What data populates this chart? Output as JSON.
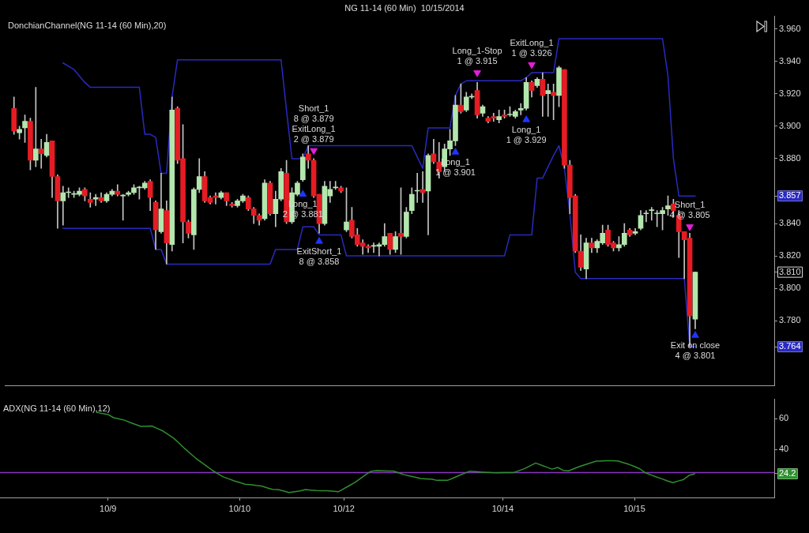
{
  "chart_data": [
    {
      "type": "candlestick",
      "title": "NG 11-14 (60 Min)  10/15/2014",
      "subtitle": "DonchianChannel(NG 11-14 (60 Min),20)",
      "categories": [
        null,
        null,
        null,
        null,
        null,
        null,
        null,
        null,
        null,
        null,
        null,
        null,
        null,
        null,
        null,
        null,
        null,
        null,
        null,
        null,
        null,
        null,
        null,
        null,
        null,
        null,
        null,
        null,
        null,
        null,
        null,
        null,
        null,
        null,
        null,
        null,
        null,
        null,
        null,
        null,
        null,
        null,
        null,
        null,
        null,
        null,
        null,
        null,
        null,
        null,
        null,
        null,
        null,
        null,
        null,
        null,
        null,
        null,
        null,
        null,
        null,
        null,
        null,
        null,
        null,
        null,
        null,
        null,
        null,
        null,
        null,
        null,
        null,
        null,
        null,
        null,
        null,
        null,
        null,
        null,
        null,
        null,
        null,
        null,
        null,
        null,
        null,
        null,
        null,
        null,
        null,
        null,
        null,
        null,
        null,
        null,
        null,
        null,
        null,
        null,
        null,
        null,
        null,
        null,
        null,
        null,
        null,
        null,
        null,
        null,
        null,
        null,
        null,
        null,
        null,
        null,
        null,
        null,
        null,
        null,
        null,
        null,
        null,
        null,
        null,
        null
      ],
      "series": [
        {
          "ohlc": [
            [
              3.911,
              3.918,
              3.895,
              3.897
            ],
            [
              3.896,
              3.9,
              3.892,
              3.898
            ],
            [
              3.899,
              3.907,
              3.89,
              3.903
            ],
            [
              3.903,
              3.905,
              3.873,
              3.879
            ],
            [
              3.879,
              3.924,
              3.875,
              3.886
            ],
            [
              3.886,
              3.892,
              3.874,
              3.883
            ],
            [
              3.882,
              3.895,
              3.881,
              3.89
            ],
            [
              3.891,
              3.891,
              3.856,
              3.869
            ],
            [
              3.869,
              3.87,
              3.837,
              3.854
            ],
            [
              3.854,
              3.863,
              3.839,
              3.859
            ],
            [
              3.859,
              3.862,
              3.856,
              3.859
            ],
            [
              3.858,
              3.86,
              3.856,
              3.858
            ],
            [
              3.858,
              3.862,
              3.857,
              3.86
            ],
            [
              3.861,
              3.862,
              3.854,
              3.857
            ],
            [
              3.855,
              3.859,
              3.85,
              3.853
            ],
            [
              3.855,
              3.858,
              3.851,
              3.856
            ],
            [
              3.856,
              3.859,
              3.853,
              3.854
            ],
            [
              3.854,
              3.859,
              3.853,
              3.858
            ],
            [
              3.858,
              3.861,
              3.857,
              3.86
            ],
            [
              3.86,
              3.864,
              3.857,
              3.858
            ],
            [
              3.857,
              3.858,
              3.842,
              3.857
            ],
            [
              3.858,
              3.86,
              3.857,
              3.859
            ],
            [
              3.859,
              3.864,
              3.858,
              3.862
            ],
            [
              3.862,
              3.863,
              3.855,
              3.862
            ],
            [
              3.862,
              3.866,
              3.861,
              3.865
            ],
            [
              3.866,
              3.867,
              3.848,
              3.856
            ],
            [
              3.853,
              3.854,
              3.824,
              3.836
            ],
            [
              3.835,
              3.871,
              3.834,
              3.849
            ],
            [
              3.848,
              3.854,
              3.815,
              3.828
            ],
            [
              3.827,
              3.918,
              3.823,
              3.91
            ],
            [
              3.911,
              3.912,
              3.877,
              3.879
            ],
            [
              3.88,
              3.901,
              3.828,
              3.841
            ],
            [
              3.841,
              3.842,
              3.831,
              3.834
            ],
            [
              3.833,
              3.862,
              3.824,
              3.861
            ],
            [
              3.861,
              3.88,
              3.859,
              3.869
            ],
            [
              3.869,
              3.872,
              3.853,
              3.854
            ],
            [
              3.856,
              3.857,
              3.852,
              3.853
            ],
            [
              3.857,
              3.859,
              3.852,
              3.856
            ],
            [
              3.856,
              3.86,
              3.855,
              3.859
            ],
            [
              3.859,
              3.859,
              3.851,
              3.854
            ],
            [
              3.852,
              3.853,
              3.85,
              3.851
            ],
            [
              3.851,
              3.855,
              3.85,
              3.854
            ],
            [
              3.854,
              3.858,
              3.853,
              3.857
            ],
            [
              3.856,
              3.857,
              3.848,
              3.849
            ],
            [
              3.849,
              3.85,
              3.84,
              3.845
            ],
            [
              3.845,
              3.846,
              3.839,
              3.842
            ],
            [
              3.843,
              3.867,
              3.842,
              3.865
            ],
            [
              3.865,
              3.866,
              3.845,
              3.846
            ],
            [
              3.846,
              3.86,
              3.838,
              3.855
            ],
            [
              3.855,
              3.874,
              3.854,
              3.872
            ],
            [
              3.871,
              3.879,
              3.84,
              3.841
            ],
            [
              3.841,
              3.862,
              3.84,
              3.859
            ],
            [
              3.858,
              3.866,
              3.857,
              3.865
            ],
            [
              3.867,
              3.883,
              3.866,
              3.881
            ],
            [
              3.883,
              3.888,
              3.874,
              3.879
            ],
            [
              3.879,
              3.88,
              3.856,
              3.857
            ],
            [
              3.858,
              3.858,
              3.834,
              3.84
            ],
            [
              3.84,
              3.866,
              3.839,
              3.863
            ],
            [
              3.857,
              3.866,
              3.853,
              3.861
            ],
            [
              3.862,
              3.866,
              3.861,
              3.862
            ],
            [
              3.862,
              3.863,
              3.859,
              3.86
            ],
            [
              3.836,
              3.862,
              3.835,
              3.841
            ],
            [
              3.842,
              3.85,
              3.831,
              3.832
            ],
            [
              3.833,
              3.837,
              3.826,
              3.827
            ],
            [
              3.828,
              3.83,
              3.821,
              3.826
            ],
            [
              3.826,
              3.827,
              3.822,
              3.825
            ],
            [
              3.826,
              3.828,
              3.822,
              3.826
            ],
            [
              3.826,
              3.828,
              3.82,
              3.827
            ],
            [
              3.827,
              3.84,
              3.826,
              3.832
            ],
            [
              3.834,
              3.834,
              3.821,
              3.824
            ],
            [
              3.824,
              3.835,
              3.822,
              3.832
            ],
            [
              3.834,
              3.862,
              3.821,
              3.832
            ],
            [
              3.832,
              3.85,
              3.831,
              3.847
            ],
            [
              3.848,
              3.862,
              3.846,
              3.858
            ],
            [
              3.86,
              3.871,
              3.853,
              3.86
            ],
            [
              3.861,
              3.872,
              3.853,
              3.859
            ],
            [
              3.86,
              3.883,
              3.833,
              3.882
            ],
            [
              3.883,
              3.892,
              3.877,
              3.878
            ],
            [
              3.878,
              3.89,
              3.868,
              3.872
            ],
            [
              3.875,
              3.889,
              3.872,
              3.886
            ],
            [
              3.886,
              3.898,
              3.882,
              3.891
            ],
            [
              3.891,
              3.919,
              3.888,
              3.913
            ],
            [
              3.913,
              3.926,
              3.908,
              3.909
            ],
            [
              3.91,
              3.921,
              3.909,
              3.918
            ],
            [
              3.918,
              3.92,
              3.917,
              3.918
            ],
            [
              3.922,
              3.927,
              3.905,
              3.907
            ],
            [
              3.908,
              3.913,
              3.906,
              3.912
            ],
            [
              3.905,
              3.906,
              3.902,
              3.903
            ],
            [
              3.906,
              3.908,
              3.903,
              3.905
            ],
            [
              3.904,
              3.91,
              3.902,
              3.906
            ],
            [
              3.907,
              3.91,
              3.905,
              3.906
            ],
            [
              3.907,
              3.912,
              3.906,
              3.907
            ],
            [
              3.906,
              3.91,
              3.905,
              3.909
            ],
            [
              3.91,
              3.914,
              3.907,
              3.911
            ],
            [
              3.911,
              3.93,
              3.91,
              3.927
            ],
            [
              3.927,
              3.928,
              3.918,
              3.922
            ],
            [
              3.925,
              3.93,
              3.924,
              3.929
            ],
            [
              3.929,
              3.933,
              3.906,
              3.919
            ],
            [
              3.92,
              3.926,
              3.906,
              3.922
            ],
            [
              3.921,
              3.926,
              3.904,
              3.919
            ],
            [
              3.919,
              3.937,
              3.912,
              3.936
            ],
            [
              3.935,
              3.935,
              3.874,
              3.876
            ],
            [
              3.876,
              3.879,
              3.846,
              3.856
            ],
            [
              3.857,
              3.858,
              3.822,
              3.823
            ],
            [
              3.823,
              3.833,
              3.811,
              3.813
            ],
            [
              3.812,
              3.831,
              3.806,
              3.828
            ],
            [
              3.828,
              3.831,
              3.822,
              3.825
            ],
            [
              3.825,
              3.83,
              3.822,
              3.829
            ],
            [
              3.828,
              3.839,
              3.827,
              3.834
            ],
            [
              3.836,
              3.839,
              3.826,
              3.827
            ],
            [
              3.828,
              3.829,
              3.823,
              3.825
            ],
            [
              3.825,
              3.832,
              3.823,
              3.827
            ],
            [
              3.827,
              3.84,
              3.826,
              3.834
            ],
            [
              3.836,
              3.837,
              3.832,
              3.833
            ],
            [
              3.834,
              3.837,
              3.833,
              3.835
            ],
            [
              3.837,
              3.848,
              3.836,
              3.845
            ],
            [
              3.846,
              3.848,
              3.841,
              3.846
            ],
            [
              3.848,
              3.85,
              3.842,
              3.848
            ],
            [
              3.846,
              3.848,
              3.838,
              3.846
            ],
            [
              3.846,
              3.85,
              3.836,
              3.848
            ],
            [
              3.849,
              3.857,
              3.845,
              3.851
            ],
            [
              3.852,
              3.855,
              3.844,
              3.848
            ],
            [
              3.845,
              3.848,
              3.819,
              3.835
            ],
            [
              3.835,
              3.835,
              3.806,
              3.83
            ],
            [
              3.831,
              3.834,
              3.764,
              3.783
            ],
            [
              3.781,
              3.81,
              3.775,
              3.81
            ]
          ],
          "colors": [
            "#e51c23",
            "#b3e6ad",
            "#b3e6ad",
            "#e51c23",
            "#b3e6ad",
            "#e51c23",
            "#b3e6ad",
            "#e51c23",
            "#e51c23",
            "#b3e6ad",
            "#b3e6ad",
            "#b3e6ad",
            "#b3e6ad",
            "#e51c23",
            "#e51c23",
            "#b3e6ad",
            "#e51c23",
            "#b3e6ad",
            "#b3e6ad",
            "#e51c23",
            "#b3e6ad",
            "#b3e6ad",
            "#b3e6ad",
            "#b3e6ad",
            "#b3e6ad",
            "#e51c23",
            "#e51c23",
            "#b3e6ad",
            "#e51c23",
            "#b3e6ad",
            "#e51c23",
            "#e51c23",
            "#e51c23",
            "#b3e6ad",
            "#b3e6ad",
            "#e51c23",
            "#e51c23",
            "#e51c23",
            "#b3e6ad",
            "#e51c23",
            "#e51c23",
            "#b3e6ad",
            "#b3e6ad",
            "#e51c23",
            "#e51c23",
            "#e51c23",
            "#b3e6ad",
            "#e51c23",
            "#b3e6ad",
            "#b3e6ad",
            "#e51c23",
            "#b3e6ad",
            "#b3e6ad",
            "#b3e6ad",
            "#e51c23",
            "#e51c23",
            "#e51c23",
            "#b3e6ad",
            "#b3e6ad",
            "#b3e6ad",
            "#e51c23",
            "#b3e6ad",
            "#e51c23",
            "#e51c23",
            "#e51c23",
            "#e51c23",
            "#b3e6ad",
            "#b3e6ad",
            "#b3e6ad",
            "#e51c23",
            "#b3e6ad",
            "#e51c23",
            "#b3e6ad",
            "#b3e6ad",
            "#b3e6ad",
            "#e51c23",
            "#b3e6ad",
            "#e51c23",
            "#e51c23",
            "#b3e6ad",
            "#b3e6ad",
            "#b3e6ad",
            "#e51c23",
            "#b3e6ad",
            "#b3e6ad",
            "#e51c23",
            "#b3e6ad",
            "#e51c23",
            "#e51c23",
            "#b3e6ad",
            "#e51c23",
            "#b3e6ad",
            "#b3e6ad",
            "#b3e6ad",
            "#b3e6ad",
            "#e51c23",
            "#b3e6ad",
            "#e51c23",
            "#b3e6ad",
            "#e51c23",
            "#b3e6ad",
            "#e51c23",
            "#e51c23",
            "#e51c23",
            "#e51c23",
            "#b3e6ad",
            "#e51c23",
            "#b3e6ad",
            "#b3e6ad",
            "#e51c23",
            "#e51c23",
            "#b3e6ad",
            "#b3e6ad",
            "#e51c23",
            "#b3e6ad",
            "#b3e6ad",
            "#b3e6ad",
            "#b3e6ad",
            "#b3e6ad",
            "#b3e6ad",
            "#b3e6ad",
            "#e51c23",
            "#e51c23",
            "#e51c23",
            "#e51c23",
            "#b3e6ad"
          ]
        },
        {
          "type": "line",
          "color": "#2a2ac0",
          "values": [
            null,
            null,
            null,
            null,
            null,
            null,
            null,
            null,
            null,
            3.939,
            3.937,
            3.935,
            3.931,
            3.927,
            3.924,
            3.924,
            3.924,
            3.924,
            3.924,
            3.924,
            3.924,
            3.924,
            3.924,
            3.924,
            3.895,
            3.895,
            3.893,
            3.871,
            3.871,
            3.918,
            3.941,
            3.941,
            3.941,
            3.941,
            3.941,
            3.941,
            3.941,
            3.941,
            3.941,
            3.941,
            3.941,
            3.941,
            3.941,
            3.941,
            3.941,
            3.941,
            3.941,
            3.941,
            3.941,
            3.941,
            3.91,
            3.88,
            3.88,
            3.88,
            3.888,
            3.888,
            3.888,
            3.888,
            3.888,
            3.888,
            3.888,
            3.888,
            3.888,
            3.888,
            3.888,
            3.888,
            3.888,
            3.888,
            3.888,
            3.888,
            3.888,
            3.888,
            3.888,
            3.888,
            3.881,
            3.874,
            3.899,
            3.899,
            3.899,
            3.899,
            3.899,
            3.919,
            3.926,
            3.928,
            3.928,
            3.928,
            3.928,
            3.928,
            3.928,
            3.928,
            3.928,
            3.928,
            3.928,
            3.928,
            3.93,
            3.933,
            3.933,
            3.933,
            3.933,
            3.933,
            3.954,
            3.954,
            3.954,
            3.954,
            3.954,
            3.954,
            3.954,
            3.954,
            3.954,
            3.954,
            3.954,
            3.954,
            3.954,
            3.954,
            3.954,
            3.954,
            3.954,
            3.954,
            3.954,
            3.954,
            3.931,
            3.88,
            3.857,
            3.857,
            3.857,
            3.857
          ]
        },
        {
          "type": "line",
          "color": "#2a2ac0",
          "values": [
            null,
            null,
            null,
            null,
            null,
            null,
            null,
            null,
            null,
            3.837,
            3.837,
            3.837,
            3.837,
            3.837,
            3.837,
            3.837,
            3.837,
            3.837,
            3.837,
            3.837,
            3.837,
            3.837,
            3.837,
            3.837,
            3.837,
            3.837,
            3.824,
            3.824,
            3.815,
            3.815,
            3.815,
            3.815,
            3.815,
            3.815,
            3.815,
            3.815,
            3.815,
            3.815,
            3.815,
            3.815,
            3.815,
            3.815,
            3.815,
            3.815,
            3.815,
            3.815,
            3.815,
            3.815,
            3.824,
            3.824,
            3.824,
            3.824,
            3.824,
            3.838,
            3.838,
            3.838,
            3.833,
            3.833,
            3.833,
            3.833,
            3.833,
            3.82,
            3.82,
            3.82,
            3.82,
            3.82,
            3.82,
            3.82,
            3.82,
            3.82,
            3.82,
            3.82,
            3.82,
            3.82,
            3.82,
            3.82,
            3.82,
            3.82,
            3.82,
            3.82,
            3.82,
            3.82,
            3.82,
            3.82,
            3.82,
            3.82,
            3.82,
            3.82,
            3.82,
            3.82,
            3.82,
            3.833,
            3.833,
            3.833,
            3.833,
            3.833,
            3.868,
            3.868,
            3.875,
            3.882,
            3.888,
            3.874,
            3.846,
            3.81,
            3.806,
            3.806,
            3.806,
            3.806,
            3.806,
            3.806,
            3.806,
            3.806,
            3.806,
            3.806,
            3.806,
            3.806,
            3.806,
            3.806,
            3.806,
            3.806,
            3.806,
            3.806,
            3.806,
            3.806,
            3.764,
            3.764
          ]
        },
        {
          "type": "scatter",
          "marker": "triangle",
          "color": "#1f35ff",
          "values": [
            null,
            null,
            null,
            null,
            null,
            null,
            null,
            null,
            null,
            null,
            null,
            null,
            null,
            null,
            null,
            null,
            null,
            null,
            null,
            null,
            null,
            null,
            null,
            null,
            null,
            null,
            null,
            null,
            null,
            null,
            null,
            null,
            null,
            null,
            null,
            null,
            null,
            null,
            null,
            null,
            null,
            null,
            null,
            null,
            null,
            null,
            null,
            null,
            null,
            null,
            null,
            null,
            null,
            3.858,
            null,
            null,
            3.829,
            null,
            null,
            null,
            null,
            null,
            null,
            null,
            null,
            null,
            null,
            null,
            null,
            null,
            null,
            null,
            null,
            null,
            null,
            null,
            null,
            null,
            null,
            null,
            null,
            3.884,
            null,
            null,
            null,
            null,
            null,
            null,
            null,
            null,
            null,
            null,
            null,
            null,
            3.904,
            null,
            null,
            null,
            null,
            null,
            null,
            null,
            null,
            null,
            null,
            null,
            null,
            null,
            null,
            null,
            null,
            null,
            null,
            null,
            null,
            null,
            null,
            null,
            null,
            null,
            null,
            null,
            null,
            null,
            null,
            3.771
          ]
        },
        {
          "type": "scatter",
          "marker": "triangle",
          "color": "#e21fd6",
          "values": [
            null,
            null,
            null,
            null,
            null,
            null,
            null,
            null,
            null,
            null,
            null,
            null,
            null,
            null,
            null,
            null,
            null,
            null,
            null,
            null,
            null,
            null,
            null,
            null,
            null,
            null,
            null,
            null,
            null,
            null,
            null,
            null,
            null,
            null,
            null,
            null,
            null,
            null,
            null,
            null,
            null,
            null,
            null,
            null,
            null,
            null,
            null,
            null,
            null,
            null,
            null,
            null,
            null,
            null,
            null,
            3.885,
            null,
            null,
            null,
            null,
            null,
            null,
            null,
            null,
            null,
            null,
            null,
            null,
            null,
            null,
            null,
            null,
            null,
            null,
            null,
            null,
            null,
            null,
            null,
            null,
            null,
            null,
            null,
            null,
            null,
            3.933,
            null,
            null,
            null,
            null,
            null,
            null,
            null,
            null,
            null,
            3.938,
            null,
            null,
            null,
            null,
            null,
            null,
            null,
            null,
            null,
            null,
            null,
            null,
            null,
            null,
            null,
            null,
            null,
            null,
            null,
            null,
            null,
            null,
            null,
            null,
            null,
            null,
            null,
            null,
            3.838,
            null
          ]
        }
      ],
      "ylim": [
        3.74,
        3.968
      ],
      "yticks": [
        {
          "value": 3.764,
          "label": "3.764"
        },
        {
          "value": 3.78,
          "label": "3.780"
        },
        {
          "value": 3.8,
          "label": "3.800"
        },
        {
          "value": 3.81,
          "label": "3.810"
        },
        {
          "value": 3.82,
          "label": "3.820"
        },
        {
          "value": 3.84,
          "label": "3.840"
        },
        {
          "value": 3.857,
          "label": "3.857"
        },
        {
          "value": 3.88,
          "label": "3.880"
        },
        {
          "value": 3.9,
          "label": "3.900"
        },
        {
          "value": 3.92,
          "label": "3.920"
        },
        {
          "value": 3.94,
          "label": "3.940"
        },
        {
          "value": 3.96,
          "label": "3.960"
        }
      ],
      "tick_labels": "y",
      "annotations": [
        "Long_1\n2 @ 3.881",
        "Short_1\n8 @ 3.879\nExitLong_1\n2 @ 3.879",
        "ExitShort_1\n8 @ 3.858",
        "Long_1\n1 @ 3.901",
        "Long_1-Stop\n1 @ 3.915",
        "Long_1\n1 @ 3.929",
        "ExitLong_1\n1 @ 3.926",
        "Short_1\n4 @ 3.805",
        "Exit on close\n4 @ 3.801"
      ]
    },
    {
      "type": "line",
      "subtitle": "ADX(NG 11-14 (60 Min),12)",
      "categories": [
        null,
        null,
        null,
        null,
        null,
        null,
        null,
        null,
        null,
        null,
        null,
        null,
        null,
        null,
        null,
        null,
        null,
        null,
        "10/9",
        null,
        null,
        null,
        null,
        null,
        null,
        null,
        null,
        null,
        null,
        null,
        null,
        null,
        null,
        null,
        null,
        null,
        null,
        null,
        null,
        null,
        null,
        null,
        "10/10",
        null,
        null,
        null,
        null,
        null,
        null,
        null,
        null,
        null,
        null,
        null,
        null,
        null,
        null,
        null,
        null,
        null,
        null,
        "10/12",
        null,
        null,
        null,
        null,
        null,
        null,
        null,
        null,
        null,
        null,
        null,
        null,
        null,
        null,
        null,
        null,
        null,
        null,
        null,
        null,
        null,
        null,
        null,
        null,
        null,
        null,
        null,
        null,
        "10/14",
        null,
        null,
        null,
        null,
        null,
        null,
        null,
        null,
        null,
        null,
        null,
        null,
        null,
        null,
        null,
        null,
        null,
        null,
        null,
        null,
        null,
        null,
        null,
        "10/15",
        null,
        null,
        null,
        null,
        null,
        null,
        null,
        null,
        null,
        null,
        null
      ],
      "series": [
        {
          "color": "#2f8f2f",
          "values": [
            null,
            null,
            null,
            null,
            null,
            null,
            null,
            null,
            null,
            null,
            null,
            null,
            null,
            null,
            null,
            null,
            64.0,
            63.3,
            62.7,
            60.6,
            59.8,
            59.0,
            57.5,
            56.2,
            55.0,
            55.1,
            55.2,
            53.6,
            52.0,
            49.6,
            47.2,
            43.9,
            40.5,
            37.4,
            34.3,
            31.7,
            29.1,
            26.5,
            24.3,
            22.2,
            20.9,
            19.6,
            18.5,
            17.4,
            17.1,
            16.6,
            16.2,
            15.1,
            14.1,
            13.9,
            13.0,
            12.0,
            12.5,
            13.0,
            13.9,
            13.6,
            13.3,
            13.2,
            13.2,
            12.9,
            12.5,
            14.5,
            16.5,
            18.5,
            21.0,
            23.6,
            25.9,
            26.2,
            26.1,
            26.0,
            26.0,
            24.8,
            23.6,
            22.8,
            22.0,
            21.1,
            20.9,
            20.7,
            19.9,
            19.9,
            20.0,
            21.5,
            23.0,
            24.5,
            25.9,
            25.6,
            25.3,
            25.1,
            24.9,
            24.8,
            24.9,
            24.9,
            25.0,
            26.3,
            27.6,
            29.4,
            31.2,
            29.8,
            28.5,
            27.2,
            28.3,
            26.4,
            26.1,
            27.5,
            28.9,
            30.1,
            31.2,
            32.4,
            32.5,
            32.6,
            32.6,
            32.5,
            31.4,
            30.3,
            28.9,
            27.4,
            24.8,
            23.5,
            22.1,
            20.9,
            19.6,
            18.4,
            19.5,
            20.5,
            23.2,
            24.2
          ]
        }
      ],
      "ylim": [
        8.8,
        72.6
      ],
      "yticks": [
        {
          "value": 24.2,
          "label": "24.2"
        },
        40,
        60
      ],
      "ref_lines": [
        {
          "axis": "y",
          "value": 25,
          "color": "#8a35c0"
        }
      ]
    }
  ]
}
